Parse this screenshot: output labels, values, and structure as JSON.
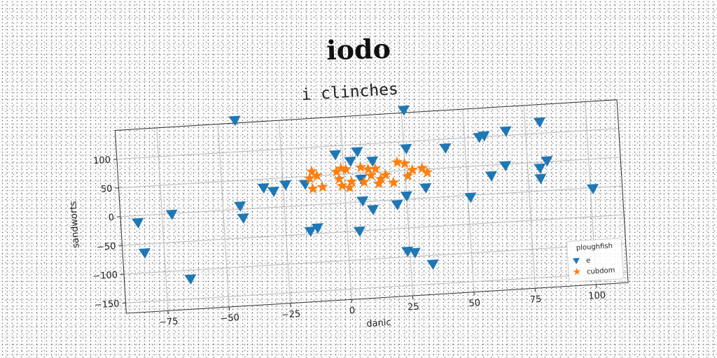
{
  "suptitle": "iodo",
  "chart_data": {
    "type": "scatter",
    "title": "i clinches",
    "xlabel": "danic",
    "ylabel": "sandworts",
    "xlim": [
      -92,
      113
    ],
    "ylim": [
      -168,
      150
    ],
    "xticks": [
      -75,
      -50,
      -25,
      0,
      25,
      50,
      75,
      100
    ],
    "xtick_labels": [
      "−75",
      "−50",
      "−25",
      "0",
      "25",
      "50",
      "75",
      "100"
    ],
    "yticks": [
      -150,
      -100,
      -50,
      0,
      50,
      100
    ],
    "ytick_labels": [
      "−150",
      "−100",
      "−50",
      "0",
      "50",
      "100"
    ],
    "grid": true,
    "legend": {
      "title": "ploughfish",
      "position": "lower right"
    },
    "series": [
      {
        "name": "e",
        "marker": "triangle-down",
        "color": "#1f77b4",
        "points": [
          [
            -43,
            155
          ],
          [
            26,
            155
          ],
          [
            81,
            120
          ],
          [
            67,
            108
          ],
          [
            58,
            102
          ],
          [
            56,
            100
          ],
          [
            42,
            85
          ],
          [
            26,
            88
          ],
          [
            6,
            88
          ],
          [
            -3,
            85
          ],
          [
            3,
            72
          ],
          [
            12,
            70
          ],
          [
            83,
            52
          ],
          [
            80,
            40
          ],
          [
            66,
            48
          ],
          [
            60,
            32
          ],
          [
            80,
            22
          ],
          [
            33,
            18
          ],
          [
            -33,
            35
          ],
          [
            -24,
            38
          ],
          [
            -29,
            28
          ],
          [
            -16,
            37
          ],
          [
            -43,
            6
          ],
          [
            -42,
            -15
          ],
          [
            -85,
            -12
          ],
          [
            -71,
            -1
          ],
          [
            -83,
            -65
          ],
          [
            -65,
            -115
          ],
          [
            -15,
            -45
          ],
          [
            -12,
            -40
          ],
          [
            5,
            -50
          ],
          [
            7,
            2
          ],
          [
            11,
            -14
          ],
          [
            21,
            -8
          ],
          [
            25,
            6
          ],
          [
            51,
            -3
          ],
          [
            101,
            -1
          ],
          [
            24,
            -90
          ],
          [
            27,
            -93
          ],
          [
            34,
            -115
          ],
          [
            7,
            40
          ]
        ]
      },
      {
        "name": "cubdom",
        "marker": "star",
        "color": "#ff7f0e",
        "points": [
          [
            -13,
            58
          ],
          [
            -11,
            50
          ],
          [
            -14,
            46
          ],
          [
            -13,
            28
          ],
          [
            -9,
            30
          ],
          [
            -3,
            55
          ],
          [
            -1,
            60
          ],
          [
            1,
            58
          ],
          [
            -2,
            42
          ],
          [
            3,
            36
          ],
          [
            -1,
            30
          ],
          [
            2,
            26
          ],
          [
            7,
            60
          ],
          [
            10,
            56
          ],
          [
            13,
            56
          ],
          [
            11,
            45
          ],
          [
            15,
            38
          ],
          [
            17,
            44
          ],
          [
            20,
            30
          ],
          [
            22,
            65
          ],
          [
            25,
            62
          ],
          [
            28,
            50
          ],
          [
            26,
            40
          ],
          [
            32,
            52
          ],
          [
            34,
            44
          ],
          [
            14,
            30
          ],
          [
            8,
            34
          ]
        ]
      }
    ]
  }
}
